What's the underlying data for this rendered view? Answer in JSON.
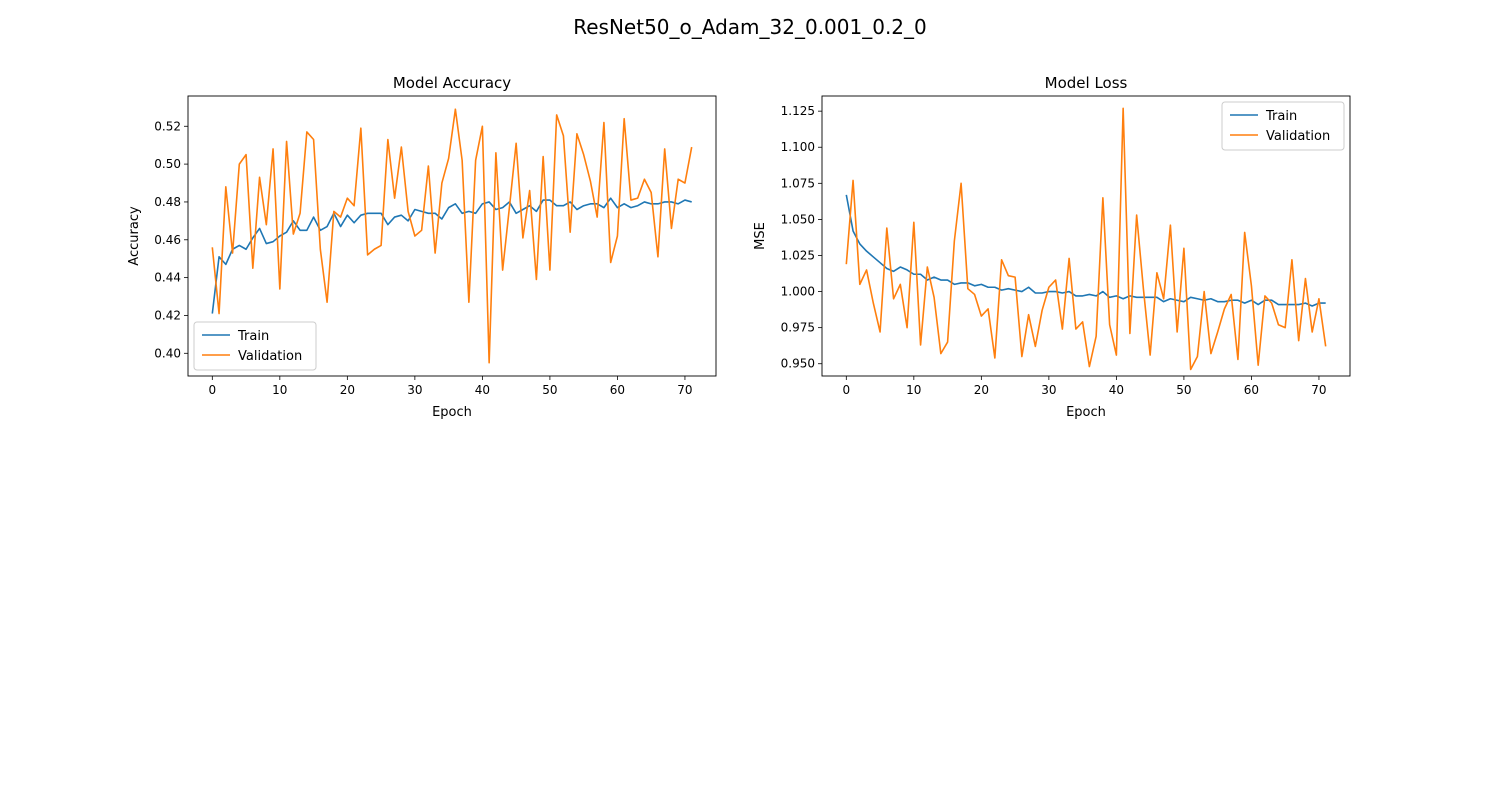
{
  "figure": {
    "suptitle": "ResNet50_o_Adam_32_0.001_0.2_0"
  },
  "chart_data": [
    {
      "type": "line",
      "title": "Model Accuracy",
      "xlabel": "Epoch",
      "ylabel": "Accuracy",
      "xlim": [
        -3.6,
        74.6
      ],
      "ylim": [
        0.388,
        0.536
      ],
      "xticks": [
        0,
        10,
        20,
        30,
        40,
        50,
        60,
        70
      ],
      "yticks": [
        0.4,
        0.42,
        0.44,
        0.46,
        0.48,
        0.5,
        0.52
      ],
      "ytick_decimals": 2,
      "legend": "lower-left",
      "grid": false,
      "series": [
        {
          "name": "Train",
          "color": "#1f77b4",
          "values": [
            0.421,
            0.451,
            0.447,
            0.455,
            0.457,
            0.455,
            0.461,
            0.466,
            0.458,
            0.459,
            0.462,
            0.464,
            0.47,
            0.465,
            0.465,
            0.472,
            0.465,
            0.467,
            0.474,
            0.467,
            0.473,
            0.469,
            0.473,
            0.474,
            0.474,
            0.474,
            0.468,
            0.472,
            0.473,
            0.47,
            0.476,
            0.475,
            0.474,
            0.474,
            0.471,
            0.477,
            0.479,
            0.474,
            0.475,
            0.474,
            0.479,
            0.48,
            0.476,
            0.477,
            0.48,
            0.474,
            0.476,
            0.478,
            0.475,
            0.481,
            0.481,
            0.478,
            0.478,
            0.48,
            0.476,
            0.478,
            0.479,
            0.479,
            0.477,
            0.482,
            0.477,
            0.479,
            0.477,
            0.478,
            0.48,
            0.479,
            0.479,
            0.48,
            0.48,
            0.479,
            0.481,
            0.48
          ]
        },
        {
          "name": "Validation",
          "color": "#ff7f0e",
          "values": [
            0.456,
            0.421,
            0.488,
            0.453,
            0.5,
            0.505,
            0.445,
            0.493,
            0.468,
            0.508,
            0.434,
            0.512,
            0.463,
            0.474,
            0.517,
            0.513,
            0.455,
            0.427,
            0.475,
            0.472,
            0.482,
            0.478,
            0.519,
            0.452,
            0.455,
            0.457,
            0.513,
            0.482,
            0.509,
            0.475,
            0.462,
            0.465,
            0.499,
            0.453,
            0.49,
            0.503,
            0.529,
            0.502,
            0.427,
            0.502,
            0.52,
            0.395,
            0.506,
            0.444,
            0.477,
            0.511,
            0.461,
            0.486,
            0.439,
            0.504,
            0.444,
            0.526,
            0.515,
            0.464,
            0.516,
            0.505,
            0.491,
            0.472,
            0.522,
            0.448,
            0.462,
            0.524,
            0.481,
            0.482,
            0.492,
            0.485,
            0.451,
            0.508,
            0.466,
            0.492,
            0.49,
            0.509
          ]
        }
      ]
    },
    {
      "type": "line",
      "title": "Model Loss",
      "xlabel": "Epoch",
      "ylabel": "MSE",
      "xlim": [
        -3.6,
        74.6
      ],
      "ylim": [
        0.9415,
        1.1355
      ],
      "xticks": [
        0,
        10,
        20,
        30,
        40,
        50,
        60,
        70
      ],
      "yticks": [
        0.95,
        0.975,
        1.0,
        1.025,
        1.05,
        1.075,
        1.1,
        1.125
      ],
      "ytick_decimals": 3,
      "legend": "upper-right",
      "grid": false,
      "series": [
        {
          "name": "Train",
          "color": "#1f77b4",
          "values": [
            1.067,
            1.042,
            1.033,
            1.028,
            1.024,
            1.02,
            1.016,
            1.014,
            1.017,
            1.015,
            1.012,
            1.012,
            1.008,
            1.01,
            1.008,
            1.008,
            1.005,
            1.006,
            1.006,
            1.004,
            1.005,
            1.003,
            1.003,
            1.001,
            1.002,
            1.001,
            1.0,
            1.003,
            0.999,
            0.999,
            1.0,
            1.0,
            0.999,
            1.0,
            0.997,
            0.997,
            0.998,
            0.997,
            1.0,
            0.996,
            0.997,
            0.995,
            0.997,
            0.996,
            0.996,
            0.996,
            0.996,
            0.993,
            0.995,
            0.994,
            0.993,
            0.996,
            0.995,
            0.994,
            0.995,
            0.993,
            0.993,
            0.994,
            0.994,
            0.992,
            0.994,
            0.991,
            0.994,
            0.994,
            0.991,
            0.991,
            0.991,
            0.991,
            0.992,
            0.99,
            0.992,
            0.992
          ]
        },
        {
          "name": "Validation",
          "color": "#ff7f0e",
          "values": [
            1.019,
            1.077,
            1.005,
            1.015,
            0.992,
            0.972,
            1.044,
            0.995,
            1.005,
            0.975,
            1.048,
            0.963,
            1.017,
            0.996,
            0.957,
            0.965,
            1.035,
            1.075,
            1.002,
            0.998,
            0.983,
            0.988,
            0.954,
            1.022,
            1.011,
            1.01,
            0.955,
            0.984,
            0.962,
            0.987,
            1.003,
            1.008,
            0.974,
            1.023,
            0.974,
            0.979,
            0.948,
            0.969,
            1.065,
            0.977,
            0.956,
            1.127,
            0.971,
            1.053,
            1.002,
            0.956,
            1.013,
            0.995,
            1.046,
            0.972,
            1.03,
            0.946,
            0.955,
            1.0,
            0.957,
            0.972,
            0.988,
            0.998,
            0.953,
            1.041,
            1.004,
            0.949,
            0.997,
            0.992,
            0.977,
            0.975,
            1.022,
            0.966,
            1.009,
            0.972,
            0.995,
            0.962
          ]
        }
      ]
    }
  ]
}
